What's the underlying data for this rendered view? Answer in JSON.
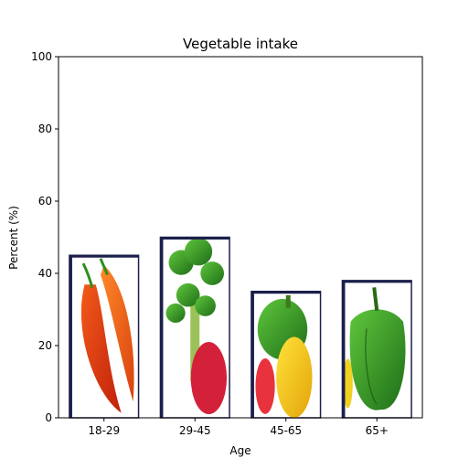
{
  "chart_data": {
    "type": "bar",
    "title": "Vegetable intake",
    "xlabel": "Age",
    "ylabel": "Percent (%)",
    "categories": [
      "18-29",
      "29-45",
      "45-65",
      "65+"
    ],
    "values": [
      45,
      50,
      35,
      38
    ],
    "ylim": [
      0,
      100
    ],
    "yticks": [
      0,
      20,
      40,
      60,
      80,
      100
    ],
    "ytick_labels": [
      "0",
      "20",
      "40",
      "60",
      "80",
      "100"
    ],
    "bar_fill": "vegetable pictures",
    "bar_images": [
      "chili-peppers",
      "broccoli-and-pepper",
      "bell-peppers",
      "green-bell-pepper"
    ],
    "grid": false
  }
}
